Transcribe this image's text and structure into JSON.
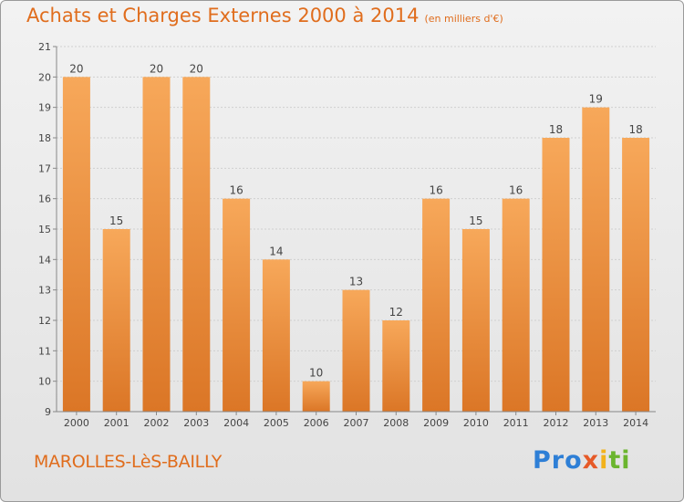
{
  "header": {
    "title": "Achats et Charges Externes 2000 à 2014",
    "unit": "(en milliers d'€)"
  },
  "footer": {
    "town": "MAROLLES-LèS-BAILLY",
    "logo_text": "Proxiti"
  },
  "colors": {
    "bar_top": "#f7a85a",
    "bar_bottom": "#db7626",
    "text": "#e06d1d",
    "grid": "#cfcfcf"
  },
  "chart_data": {
    "type": "bar",
    "categories": [
      "2000",
      "2001",
      "2002",
      "2003",
      "2004",
      "2005",
      "2006",
      "2007",
      "2008",
      "2009",
      "2010",
      "2011",
      "2012",
      "2013",
      "2014"
    ],
    "values": [
      20,
      15,
      20,
      20,
      16,
      14,
      10,
      13,
      12,
      16,
      15,
      16,
      18,
      19,
      18
    ],
    "ylim": [
      9,
      21
    ],
    "yticks": [
      9,
      10,
      11,
      12,
      13,
      14,
      15,
      16,
      17,
      18,
      19,
      20,
      21
    ],
    "grid": true,
    "data_labels": true
  }
}
